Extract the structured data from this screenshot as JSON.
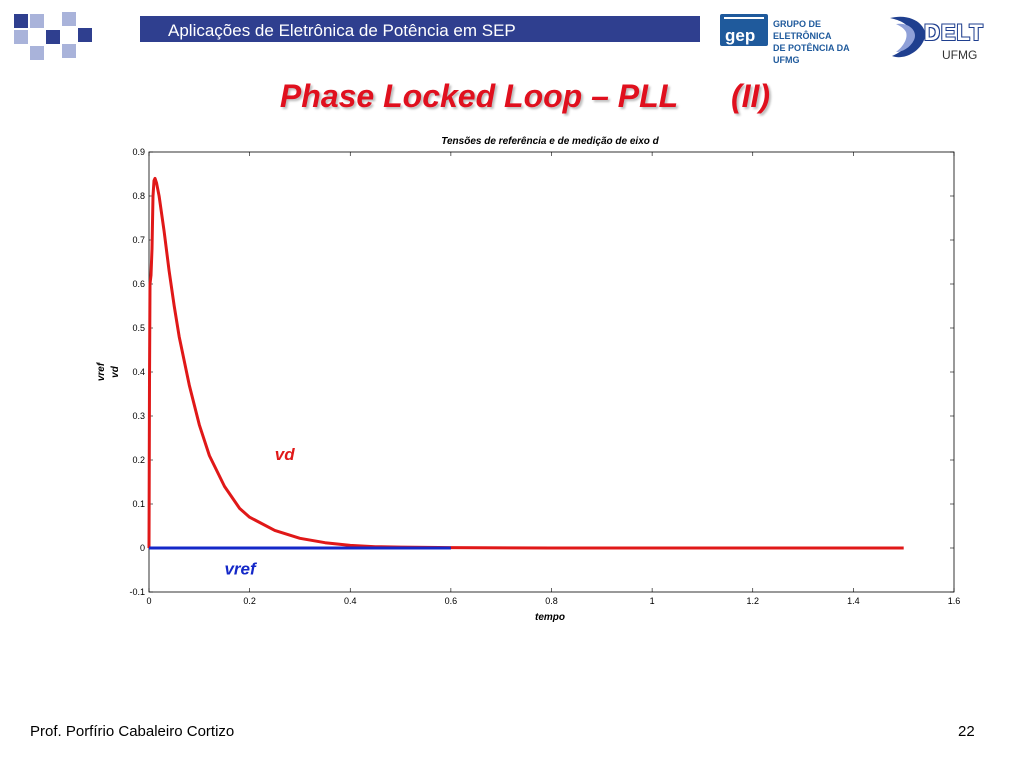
{
  "header": {
    "title": "Aplicações de Eletrônica de Potência em SEP",
    "bar_color": "#2f3f8f",
    "accent_light": "#a9b3da"
  },
  "logos": {
    "gep_mark": "gep",
    "gep_caption_line1": "GRUPO DE ELETRÔNICA",
    "gep_caption_line2": "DE POTÊNCIA DA UFMG",
    "delt_mark": "DELT",
    "ufmg_mark": "UFMG"
  },
  "slide": {
    "title": "Phase Locked Loop – PLL      (II)",
    "title_color": "#e0101e"
  },
  "footer": {
    "author": "Prof. Porfírio Cabaleiro Cortizo",
    "page": "22"
  },
  "chart_data": {
    "type": "line",
    "title": "Tensões de referência e de medição de eixo d",
    "xlabel": "tempo",
    "ylabel_lines": [
      "vref",
      "vd"
    ],
    "xlim": [
      0,
      1.6
    ],
    "ylim": [
      -0.1,
      0.9
    ],
    "xticks": [
      0,
      0.2,
      0.4,
      0.6,
      0.8,
      1,
      1.2,
      1.4,
      1.6
    ],
    "yticks": [
      -0.1,
      0,
      0.1,
      0.2,
      0.3,
      0.4,
      0.5,
      0.6,
      0.7,
      0.8,
      0.9
    ],
    "grid": false,
    "series": [
      {
        "name": "vd",
        "color": "#e01818",
        "x": [
          0,
          0.001,
          0.002,
          0.004,
          0.006,
          0.008,
          0.01,
          0.012,
          0.015,
          0.02,
          0.03,
          0.04,
          0.05,
          0.06,
          0.08,
          0.1,
          0.12,
          0.15,
          0.18,
          0.2,
          0.25,
          0.3,
          0.35,
          0.4,
          0.45,
          0.5,
          0.6,
          0.8,
          1.0,
          1.2,
          1.5
        ],
        "y": [
          0,
          0.38,
          0.6,
          0.62,
          0.68,
          0.8,
          0.835,
          0.84,
          0.83,
          0.8,
          0.72,
          0.63,
          0.55,
          0.48,
          0.37,
          0.28,
          0.21,
          0.14,
          0.09,
          0.07,
          0.04,
          0.022,
          0.012,
          0.006,
          0.003,
          0.002,
          0.001,
          0,
          0,
          0,
          0
        ]
      },
      {
        "name": "vref",
        "color": "#1428c8",
        "x": [
          0,
          0.6
        ],
        "y": [
          0,
          0
        ]
      }
    ],
    "annotations": [
      {
        "text": "vd",
        "color": "#e01818",
        "x": 0.25,
        "y": 0.2
      },
      {
        "text": "vref",
        "color": "#1428c8",
        "x": 0.15,
        "y": -0.06
      }
    ]
  }
}
